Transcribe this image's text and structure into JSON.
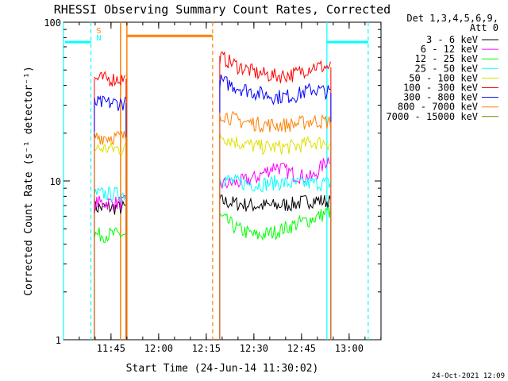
{
  "chart_data": {
    "type": "line",
    "title": "RHESSI Observing Summary Count Rates, Corrected",
    "xlabel": "Start Time (24-Jun-14 11:30:02)",
    "ylabel": "Corrected Count Rate (s⁻¹ detector⁻¹)",
    "yscale": "log",
    "ylim": [
      1,
      100
    ],
    "xlim": [
      "11:30:02",
      "13:10:02"
    ],
    "x_ticks": [
      "11:45",
      "12:00",
      "12:15",
      "12:30",
      "12:45",
      "13:00"
    ],
    "y_ticks": [
      "1",
      "10",
      "100"
    ],
    "grid": false,
    "legend_position": "right",
    "legend_header": [
      "Det 1,3,4,5,6,9,",
      "Att 0"
    ],
    "footer_date": "24-Oct-2021 12:09",
    "markers": {
      "S": {
        "label": "S",
        "color": "#ff8000"
      },
      "N": {
        "label": "N",
        "color": "#00ffff"
      },
      "cyan_bar_level": 75,
      "orange_bar_level": 82,
      "cyan_solid_at": [
        "11:30:02",
        "12:53:00"
      ],
      "cyan_dashed_at": [
        "11:38:40",
        "13:06:00"
      ],
      "orange_solid_at": [
        "11:48:00",
        "11:50:00"
      ],
      "orange_dashed_at": [
        "12:17:00"
      ]
    },
    "segments": [
      [
        "11:39:30",
        "11:50:00"
      ],
      [
        "12:19:00",
        "12:54:30"
      ]
    ],
    "series": [
      {
        "name": "3 - 6 keV",
        "color": "#000000",
        "values": [
          [
            6.8,
            6.8,
            6.8
          ],
          [
            7.5,
            7.2,
            7.0,
            7.0,
            7.2,
            7.6,
            7.4
          ]
        ]
      },
      {
        "name": "6 - 12 keV",
        "color": "#ff00ff",
        "values": [
          [
            7.3,
            7.3,
            7.3
          ],
          [
            9.5,
            9.8,
            10.5,
            12.5,
            11.0,
            10.5,
            14.5
          ]
        ]
      },
      {
        "name": "12 - 25 keV",
        "color": "#00ff00",
        "values": [
          [
            4.6,
            4.6,
            4.6
          ],
          [
            6.0,
            5.0,
            4.5,
            4.8,
            5.3,
            5.8,
            6.5
          ]
        ]
      },
      {
        "name": "25 - 50 keV",
        "color": "#00ffff",
        "values": [
          [
            8.3,
            8.3,
            8.3
          ],
          [
            10.5,
            9.8,
            9.5,
            9.8,
            9.6,
            9.7,
            9.7
          ]
        ]
      },
      {
        "name": "50 - 100 keV",
        "color": "#e0e000",
        "values": [
          [
            16.0,
            16.0,
            16.0
          ],
          [
            19.5,
            17.5,
            16.5,
            16.3,
            16.5,
            17.5,
            17.5
          ]
        ]
      },
      {
        "name": "100 - 300 keV",
        "color": "#ff0000",
        "values": [
          [
            44.0,
            44.0,
            44.0
          ],
          [
            61.0,
            53.0,
            48.0,
            46.0,
            47.0,
            53.0,
            52.0
          ]
        ]
      },
      {
        "name": "300 - 800 keV",
        "color": "#0000ff",
        "values": [
          [
            31.0,
            31.0,
            31.0
          ],
          [
            43.0,
            39.0,
            36.0,
            34.0,
            34.5,
            38.0,
            36.0
          ]
        ]
      },
      {
        "name": "800 - 7000 keV",
        "color": "#ff8000",
        "values": [
          [
            19.0,
            19.0,
            19.0
          ],
          [
            27.0,
            24.0,
            23.0,
            22.5,
            22.8,
            24.0,
            23.5
          ]
        ]
      },
      {
        "name": "7000 - 15000 keV",
        "color": "#808000",
        "values": [
          [
            null,
            null,
            null
          ],
          [
            null,
            null,
            null,
            null,
            null,
            null,
            null
          ]
        ]
      }
    ]
  }
}
